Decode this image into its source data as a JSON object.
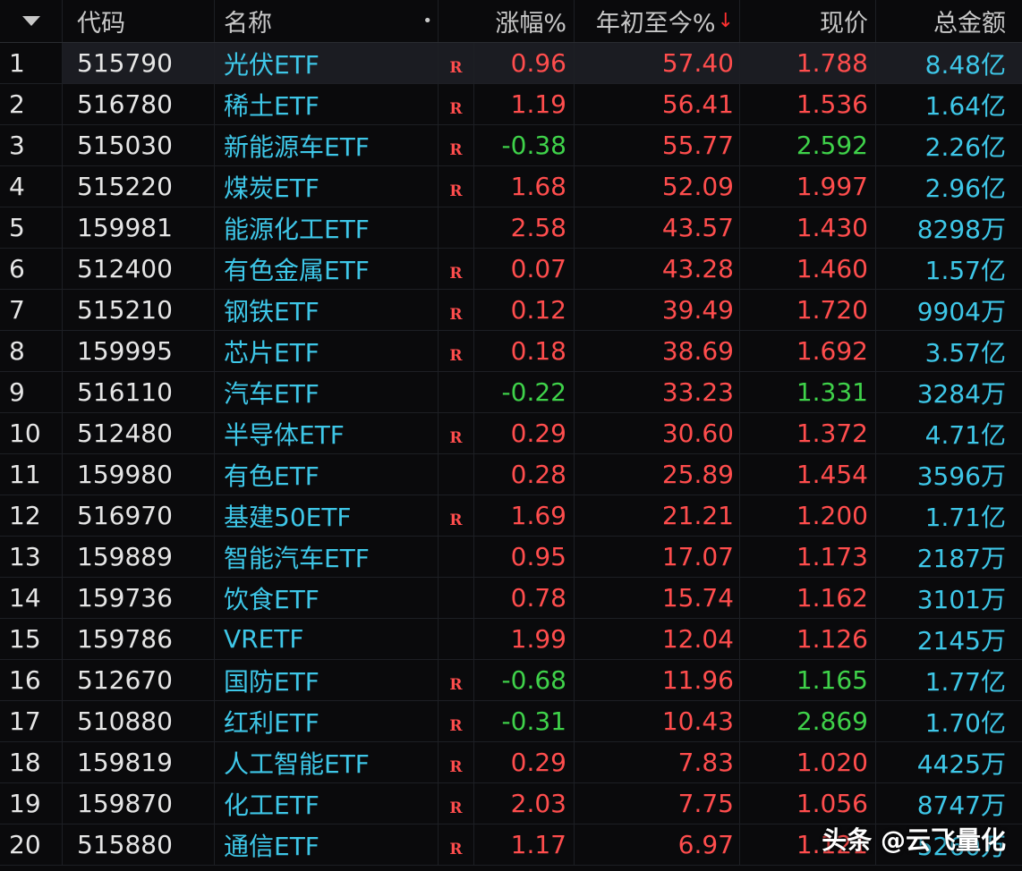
{
  "header": {
    "code": "代码",
    "name": "名称",
    "dot": "•",
    "change": "涨幅%",
    "ytd": "年初至今%",
    "sort_arrow": "↓",
    "price": "现价",
    "amount": "总金额"
  },
  "rows": [
    {
      "idx": "1",
      "code": "515790",
      "name": "光伏ETF",
      "flag": "R",
      "chg": "0.96",
      "ytd": "57.40",
      "price": "1.788",
      "amt": "8.48亿"
    },
    {
      "idx": "2",
      "code": "516780",
      "name": "稀土ETF",
      "flag": "R",
      "chg": "1.19",
      "ytd": "56.41",
      "price": "1.536",
      "amt": "1.64亿"
    },
    {
      "idx": "3",
      "code": "515030",
      "name": "新能源车ETF",
      "flag": "R",
      "chg": "-0.38",
      "ytd": "55.77",
      "price": "2.592",
      "amt": "2.26亿"
    },
    {
      "idx": "4",
      "code": "515220",
      "name": "煤炭ETF",
      "flag": "R",
      "chg": "1.68",
      "ytd": "52.09",
      "price": "1.997",
      "amt": "2.96亿"
    },
    {
      "idx": "5",
      "code": "159981",
      "name": "能源化工ETF",
      "flag": "",
      "chg": "2.58",
      "ytd": "43.57",
      "price": "1.430",
      "amt": "8298万"
    },
    {
      "idx": "6",
      "code": "512400",
      "name": "有色金属ETF",
      "flag": "R",
      "chg": "0.07",
      "ytd": "43.28",
      "price": "1.460",
      "amt": "1.57亿"
    },
    {
      "idx": "7",
      "code": "515210",
      "name": "钢铁ETF",
      "flag": "R",
      "chg": "0.12",
      "ytd": "39.49",
      "price": "1.720",
      "amt": "9904万"
    },
    {
      "idx": "8",
      "code": "159995",
      "name": "芯片ETF",
      "flag": "R",
      "chg": "0.18",
      "ytd": "38.69",
      "price": "1.692",
      "amt": "3.57亿"
    },
    {
      "idx": "9",
      "code": "516110",
      "name": "汽车ETF",
      "flag": "",
      "chg": "-0.22",
      "ytd": "33.23",
      "price": "1.331",
      "amt": "3284万"
    },
    {
      "idx": "10",
      "code": "512480",
      "name": "半导体ETF",
      "flag": "R",
      "chg": "0.29",
      "ytd": "30.60",
      "price": "1.372",
      "amt": "4.71亿"
    },
    {
      "idx": "11",
      "code": "159980",
      "name": "有色ETF",
      "flag": "",
      "chg": "0.28",
      "ytd": "25.89",
      "price": "1.454",
      "amt": "3596万"
    },
    {
      "idx": "12",
      "code": "516970",
      "name": "基建50ETF",
      "flag": "R",
      "chg": "1.69",
      "ytd": "21.21",
      "price": "1.200",
      "amt": "1.71亿"
    },
    {
      "idx": "13",
      "code": "159889",
      "name": "智能汽车ETF",
      "flag": "",
      "chg": "0.95",
      "ytd": "17.07",
      "price": "1.173",
      "amt": "2187万"
    },
    {
      "idx": "14",
      "code": "159736",
      "name": "饮食ETF",
      "flag": "",
      "chg": "0.78",
      "ytd": "15.74",
      "price": "1.162",
      "amt": "3101万"
    },
    {
      "idx": "15",
      "code": "159786",
      "name": "VRETF",
      "flag": "",
      "chg": "1.99",
      "ytd": "12.04",
      "price": "1.126",
      "amt": "2145万"
    },
    {
      "idx": "16",
      "code": "512670",
      "name": "国防ETF",
      "flag": "R",
      "chg": "-0.68",
      "ytd": "11.96",
      "price": "1.165",
      "amt": "1.77亿"
    },
    {
      "idx": "17",
      "code": "510880",
      "name": "红利ETF",
      "flag": "R",
      "chg": "-0.31",
      "ytd": "10.43",
      "price": "2.869",
      "amt": "1.70亿"
    },
    {
      "idx": "18",
      "code": "159819",
      "name": "人工智能ETF",
      "flag": "R",
      "chg": "0.29",
      "ytd": "7.83",
      "price": "1.020",
      "amt": "4425万"
    },
    {
      "idx": "19",
      "code": "159870",
      "name": "化工ETF",
      "flag": "R",
      "chg": "2.03",
      "ytd": "7.75",
      "price": "1.056",
      "amt": "8747万"
    },
    {
      "idx": "20",
      "code": "515880",
      "name": "通信ETF",
      "flag": "R",
      "chg": "1.17",
      "ytd": "6.97",
      "price": "1.121",
      "amt": "5260万"
    }
  ],
  "watermark": "头条 @云飞量化",
  "colors": {
    "up": "#ff4d4d",
    "down": "#3fd24a",
    "name": "#3ec7e8",
    "background": "#0a0a0c"
  }
}
